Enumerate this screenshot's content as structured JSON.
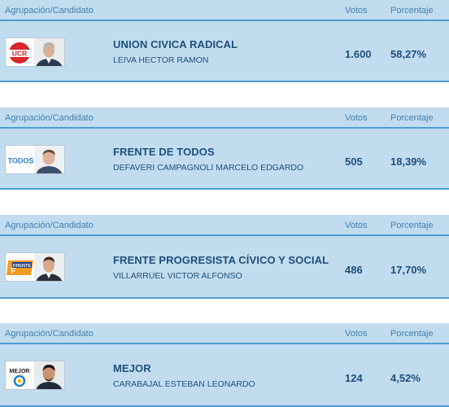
{
  "header": {
    "party_label": "Agrupación/Candidato",
    "votes_label": "Votos",
    "pct_label": "Porcentaje"
  },
  "results": [
    {
      "party": "UNION CIVICA RADICAL",
      "candidate": "LEIVA HECTOR RAMON",
      "votes": "1.600",
      "pct": "58,27%",
      "logo_text": "UCR",
      "logo_icon": "ucr-logo-icon",
      "color": "#d7262c"
    },
    {
      "party": "FRENTE DE TODOS",
      "candidate": "DEFAVERI CAMPAGNOLI MARCELO EDGARDO",
      "votes": "505",
      "pct": "18,39%",
      "logo_text": "TODOS",
      "logo_icon": "todos-logo-icon",
      "color": "#2a7fc1"
    },
    {
      "party": "FRENTE PROGRESISTA CÍVICO Y SOCIAL",
      "candidate": "VILLARRUEL VICTOR ALFONSO",
      "votes": "486",
      "pct": "17,70%",
      "logo_text": "FRENTE",
      "logo_icon": "frente-progresista-logo-icon",
      "color": "#f39a1e"
    },
    {
      "party": "MEJOR",
      "candidate": "CARABAJAL ESTEBAN LEONARDO",
      "votes": "124",
      "pct": "4,52%",
      "logo_text": "MEJOR",
      "logo_icon": "mejor-logo-icon",
      "color": "#222222"
    }
  ]
}
